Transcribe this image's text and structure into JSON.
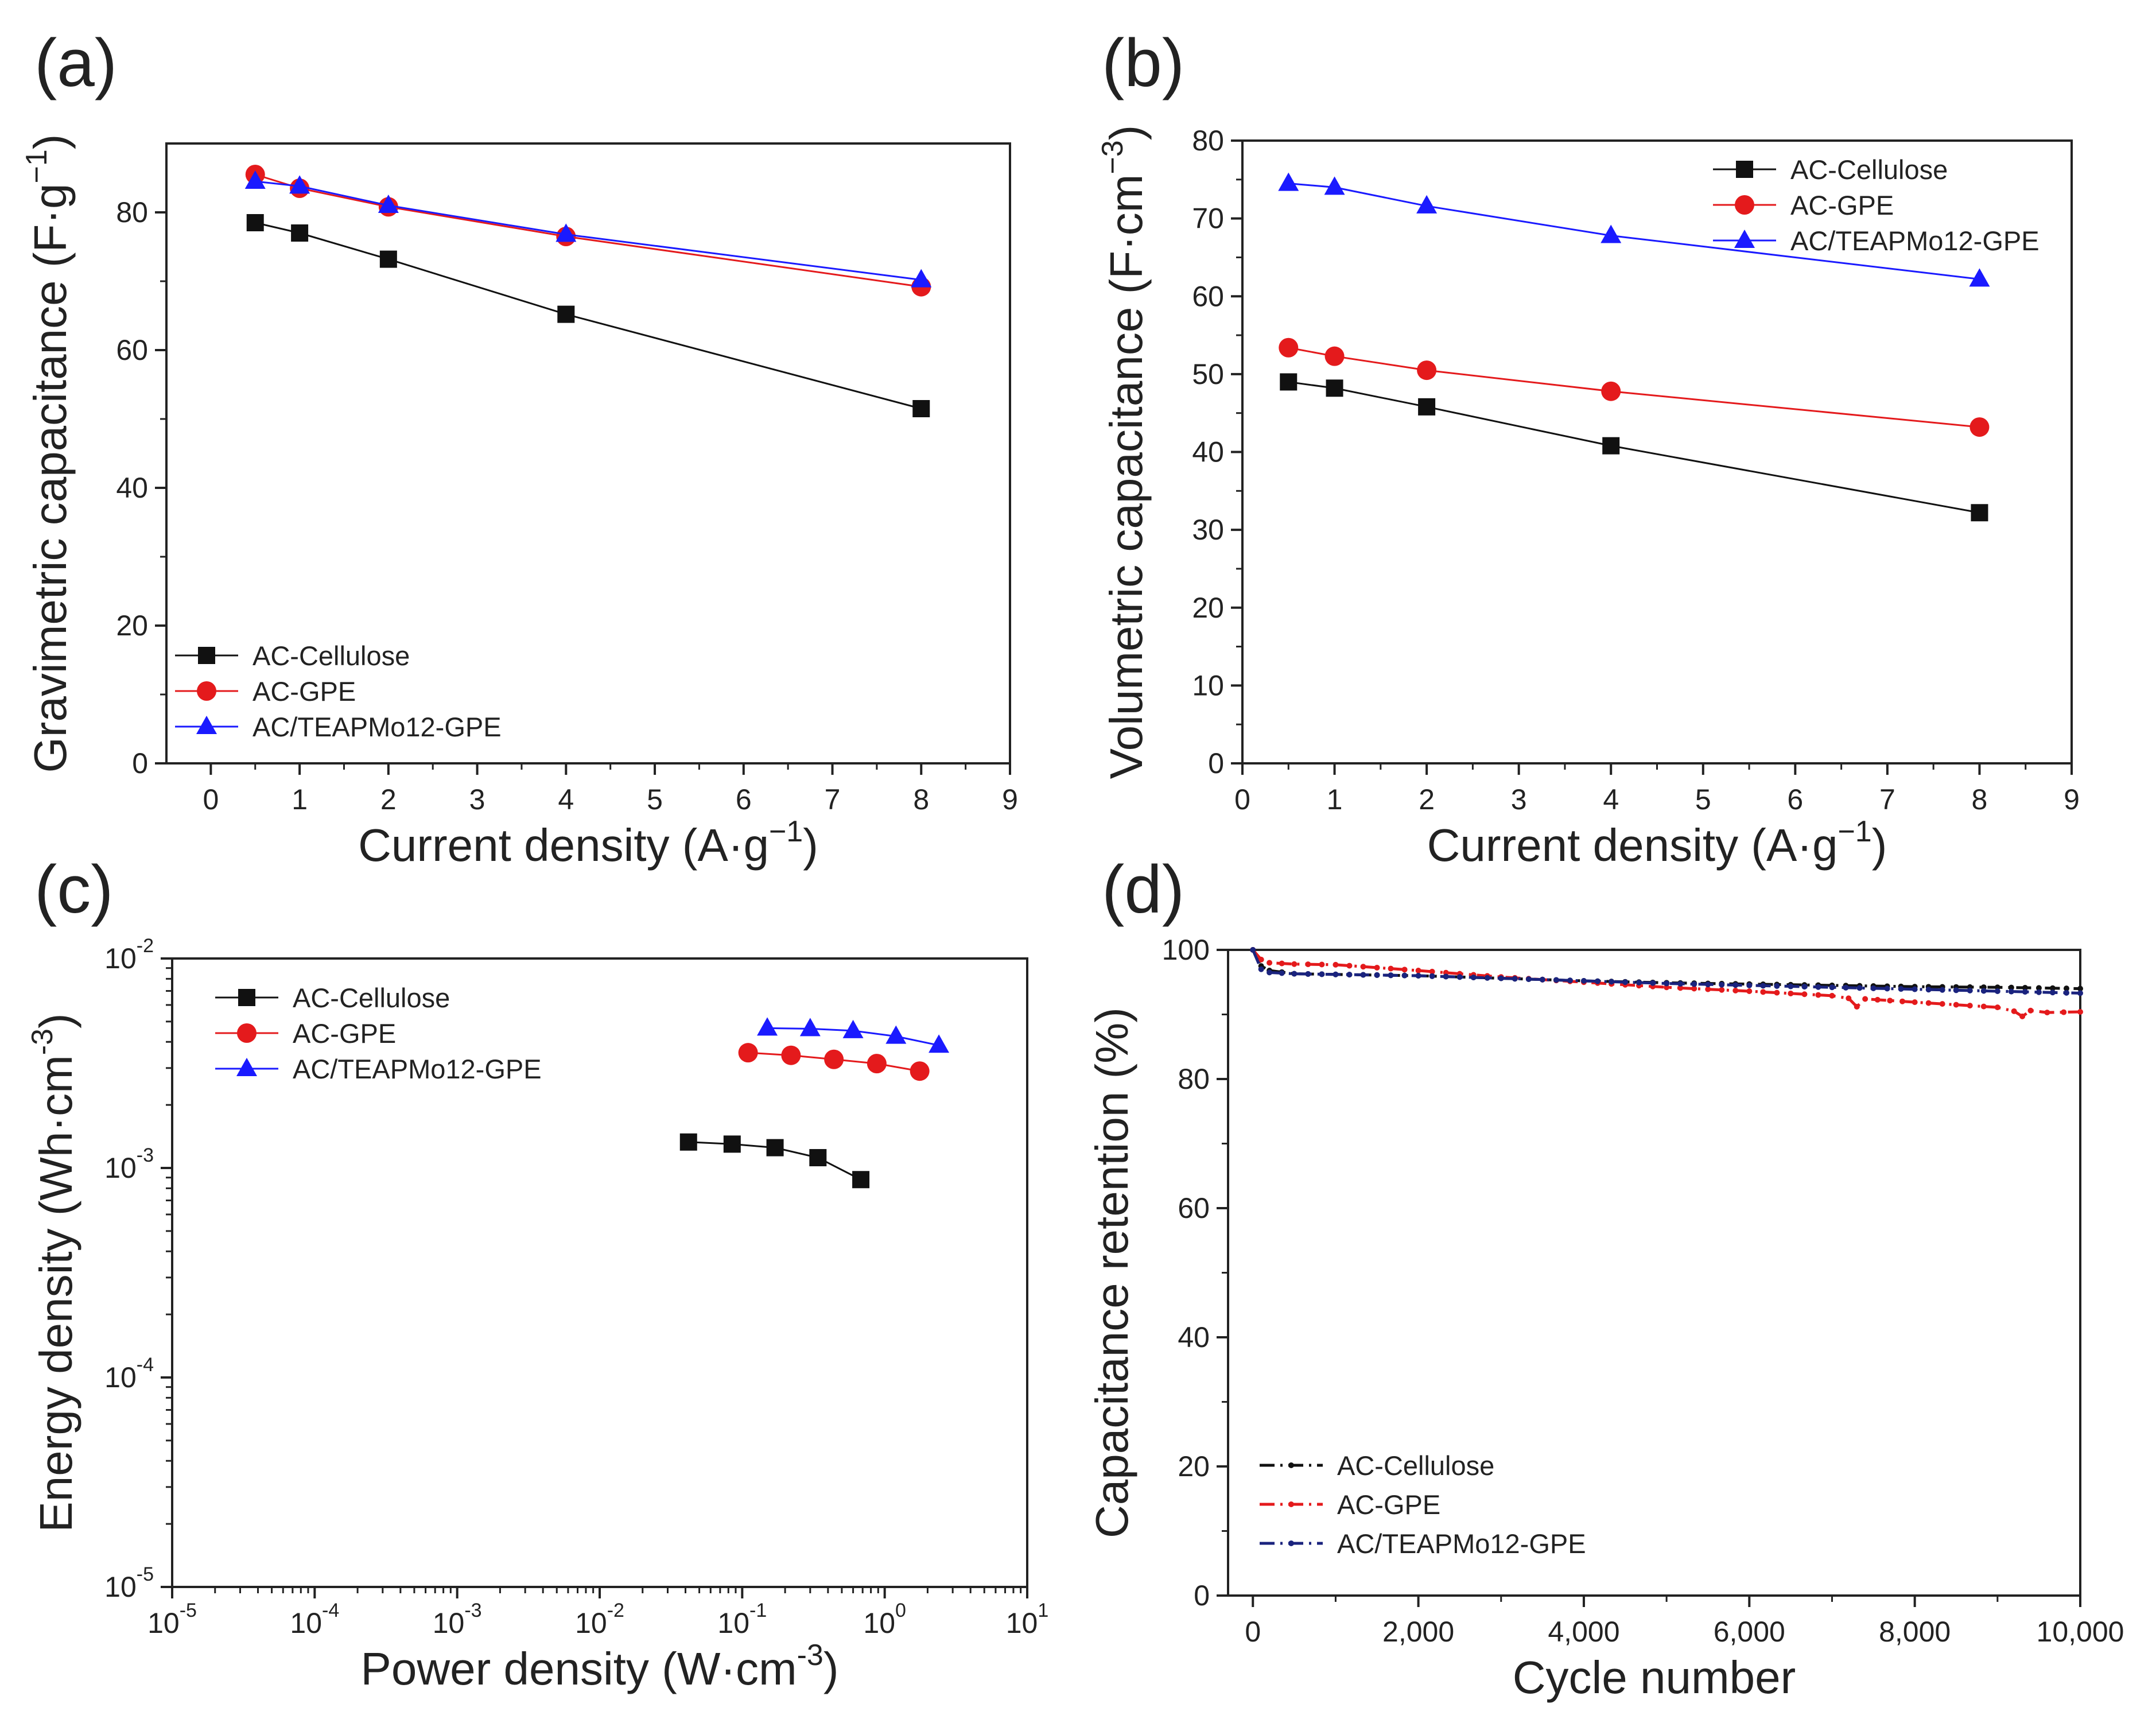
{
  "figure": {
    "colors": {
      "black": "#111111",
      "red": "#e41a1c",
      "blue": "#1a1aff",
      "navy": "#1a237e",
      "axis": "#222222"
    }
  },
  "chart_data": [
    {
      "panel_label": "(a)",
      "type": "line",
      "xlabel_main": "Current density (A·g",
      "xlabel_sup": "−1",
      "xlabel_close": ")",
      "ylabel_main": "Gravimetric capacitance (F·g",
      "ylabel_sup": "−1",
      "ylabel_close": ")",
      "xlim": [
        -0.5,
        9
      ],
      "ylim": [
        0,
        90
      ],
      "xticks": [
        0,
        1,
        2,
        3,
        4,
        5,
        6,
        7,
        8,
        9
      ],
      "yticks": [
        0,
        20,
        40,
        60,
        80
      ],
      "xtick_labels": [
        "0",
        "1",
        "2",
        "3",
        "4",
        "5",
        "6",
        "7",
        "8",
        "9"
      ],
      "ytick_labels": [
        "0",
        "20",
        "40",
        "60",
        "80"
      ],
      "legend_position": "bottom-left",
      "series": [
        {
          "name": "AC-Cellulose",
          "color": "#111111",
          "marker": "square",
          "x": [
            0.5,
            1,
            2,
            4,
            8
          ],
          "y": [
            78.5,
            77,
            73.2,
            65.2,
            51.5
          ]
        },
        {
          "name": "AC-GPE",
          "color": "#e41a1c",
          "marker": "circle",
          "x": [
            0.5,
            1,
            2,
            4,
            8
          ],
          "y": [
            85.5,
            83.5,
            80.8,
            76.5,
            69.2
          ]
        },
        {
          "name": "AC/TEAPMo12-GPE",
          "color": "#1a1aff",
          "marker": "triangle",
          "x": [
            0.5,
            1,
            2,
            4,
            8
          ],
          "y": [
            84.5,
            83.8,
            81,
            76.8,
            70.2
          ]
        }
      ]
    },
    {
      "panel_label": "(b)",
      "type": "line",
      "xlabel_main": "Current density (A·g",
      "xlabel_sup": "−1",
      "xlabel_close": ")",
      "ylabel_main": "Volumetric capacitance (F·cm",
      "ylabel_sup": "−3",
      "ylabel_close": ")",
      "xlim": [
        0,
        9
      ],
      "ylim": [
        0,
        80
      ],
      "xticks": [
        0,
        1,
        2,
        3,
        4,
        5,
        6,
        7,
        8,
        9
      ],
      "yticks": [
        0,
        10,
        20,
        30,
        40,
        50,
        60,
        70,
        80
      ],
      "xtick_labels": [
        "0",
        "1",
        "2",
        "3",
        "4",
        "5",
        "6",
        "7",
        "8",
        "9"
      ],
      "ytick_labels": [
        "0",
        "10",
        "20",
        "30",
        "40",
        "50",
        "60",
        "70",
        "80"
      ],
      "legend_position": "top-right",
      "series": [
        {
          "name": "AC-Cellulose",
          "color": "#111111",
          "marker": "square",
          "x": [
            0.5,
            1,
            2,
            4,
            8
          ],
          "y": [
            49,
            48.2,
            45.8,
            40.8,
            32.2
          ]
        },
        {
          "name": "AC-GPE",
          "color": "#e41a1c",
          "marker": "circle",
          "x": [
            0.5,
            1,
            2,
            4,
            8
          ],
          "y": [
            53.4,
            52.3,
            50.5,
            47.8,
            43.2
          ]
        },
        {
          "name": "AC/TEAPMo12-GPE",
          "color": "#1a1aff",
          "marker": "triangle",
          "x": [
            0.5,
            1,
            2,
            4,
            8
          ],
          "y": [
            74.5,
            74,
            71.6,
            67.8,
            62.2
          ]
        }
      ]
    },
    {
      "panel_label": "(c)",
      "type": "line",
      "xscale": "log",
      "yscale": "log",
      "xlabel_main": "Power density (W·cm",
      "xlabel_sup": "-3",
      "xlabel_close": ")",
      "ylabel_main": "Energy density (Wh·cm",
      "ylabel_sup": "-3",
      "ylabel_close": ")",
      "xlim": [
        1e-05,
        10
      ],
      "ylim": [
        1e-05,
        0.01
      ],
      "xticks": [
        1e-05,
        0.0001,
        0.001,
        0.01,
        0.1,
        1,
        10
      ],
      "yticks": [
        1e-05,
        0.0001,
        0.001,
        0.01
      ],
      "xtick_labels": [
        {
          "base": "10",
          "exp": "-5"
        },
        {
          "base": "10",
          "exp": "-4"
        },
        {
          "base": "10",
          "exp": "-3"
        },
        {
          "base": "10",
          "exp": "-2"
        },
        {
          "base": "10",
          "exp": "-1"
        },
        {
          "base": "10",
          "exp": "0"
        },
        {
          "base": "10",
          "exp": "1"
        }
      ],
      "ytick_labels": [
        {
          "base": "10",
          "exp": "-5"
        },
        {
          "base": "10",
          "exp": "-4"
        },
        {
          "base": "10",
          "exp": "-3"
        },
        {
          "base": "10",
          "exp": "-2"
        }
      ],
      "legend_position": "top-left",
      "series": [
        {
          "name": "AC-Cellulose",
          "color": "#111111",
          "marker": "square",
          "x": [
            0.042,
            0.085,
            0.17,
            0.34,
            0.68
          ],
          "y": [
            0.00133,
            0.0013,
            0.00125,
            0.00112,
            0.00088
          ]
        },
        {
          "name": "AC-GPE",
          "color": "#e41a1c",
          "marker": "circle",
          "x": [
            0.11,
            0.22,
            0.44,
            0.88,
            1.76
          ],
          "y": [
            0.00355,
            0.00345,
            0.0033,
            0.00315,
            0.0029
          ]
        },
        {
          "name": "AC/TEAPMo12-GPE",
          "color": "#1a1aff",
          "marker": "triangle",
          "x": [
            0.15,
            0.3,
            0.6,
            1.2,
            2.4
          ],
          "y": [
            0.00465,
            0.00462,
            0.00452,
            0.00425,
            0.00385
          ]
        }
      ]
    },
    {
      "panel_label": "(d)",
      "type": "line",
      "xlabel_main": "Cycle number",
      "xlabel_sup": "",
      "xlabel_close": "",
      "ylabel_main": "Capacitance retention (%)",
      "ylabel_sup": "",
      "ylabel_close": "",
      "xlim": [
        -300,
        10000
      ],
      "ylim": [
        0,
        100
      ],
      "xticks": [
        0,
        2000,
        4000,
        6000,
        8000,
        10000
      ],
      "yticks": [
        0,
        20,
        40,
        60,
        80,
        100
      ],
      "xtick_labels": [
        "0",
        "2,000",
        "4,000",
        "6,000",
        "8,000",
        "10,000"
      ],
      "ytick_labels": [
        "0",
        "20",
        "40",
        "60",
        "80",
        "100"
      ],
      "legend_position": "bottom-left",
      "series": [
        {
          "name": "AC-Cellulose",
          "color": "#111111",
          "marker": "dot",
          "x": [
            0,
            100,
            200,
            500,
            1000,
            2000,
            3000,
            4000,
            5000,
            6000,
            7000,
            8000,
            9000,
            10000
          ],
          "y": [
            100,
            97.5,
            96.8,
            96.3,
            96.2,
            96,
            95.6,
            95.2,
            94.9,
            94.7,
            94.5,
            94.3,
            94.2,
            94
          ]
        },
        {
          "name": "AC-GPE",
          "color": "#e41a1c",
          "marker": "dot",
          "x": [
            0,
            100,
            200,
            500,
            1000,
            2000,
            3000,
            4000,
            5000,
            6000,
            7000,
            7200,
            7300,
            7400,
            8000,
            9000,
            9200,
            9300,
            9400,
            9600,
            10000
          ],
          "y": [
            100,
            98.5,
            98,
            97.8,
            97.7,
            96.8,
            95.8,
            95,
            94.2,
            93.6,
            92.9,
            92.5,
            91.2,
            92.4,
            91.9,
            91.1,
            90.5,
            89.7,
            90.6,
            90.3,
            90.4
          ]
        },
        {
          "name": "AC/TEAPMo12-GPE",
          "color": "#1a237e",
          "marker": "dot",
          "x": [
            0,
            100,
            200,
            500,
            1000,
            2000,
            3000,
            4000,
            5000,
            6000,
            7000,
            8000,
            9000,
            10000
          ],
          "y": [
            100,
            97,
            96.5,
            96.3,
            96.2,
            96,
            95.6,
            95.2,
            94.8,
            94.5,
            94.2,
            93.9,
            93.6,
            93.3
          ]
        }
      ]
    }
  ]
}
